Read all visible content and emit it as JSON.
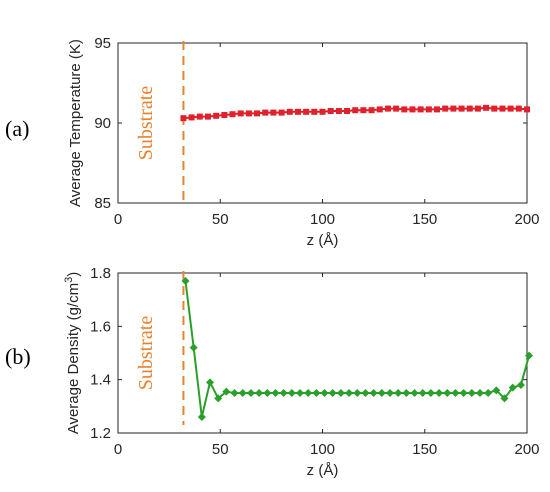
{
  "chart_data": [
    {
      "type": "line",
      "panel_label": "(a)",
      "xlabel": "z (Å)",
      "ylabel": "Average Temperature (K)",
      "xlim": [
        0,
        200
      ],
      "ylim": [
        85,
        95
      ],
      "xticks": [
        0,
        50,
        100,
        150,
        200
      ],
      "yticks": [
        85,
        90,
        95
      ],
      "annotation": "Substrate",
      "substrate_z": 32,
      "marker": "square",
      "color": "#e0202a",
      "annotation_color": "#e8822e",
      "x": [
        32,
        36,
        40,
        44,
        48,
        52,
        56,
        60,
        64,
        68,
        72,
        76,
        80,
        84,
        88,
        92,
        96,
        100,
        104,
        108,
        112,
        116,
        120,
        124,
        128,
        132,
        136,
        140,
        144,
        148,
        152,
        156,
        160,
        164,
        168,
        172,
        176,
        180,
        184,
        188,
        192,
        196,
        200
      ],
      "values": [
        90.3,
        90.35,
        90.4,
        90.4,
        90.45,
        90.5,
        90.55,
        90.6,
        90.6,
        90.6,
        90.65,
        90.65,
        90.65,
        90.7,
        90.7,
        90.7,
        90.7,
        90.7,
        90.75,
        90.75,
        90.75,
        90.8,
        90.8,
        90.8,
        90.85,
        90.9,
        90.9,
        90.85,
        90.85,
        90.85,
        90.85,
        90.85,
        90.9,
        90.9,
        90.9,
        90.9,
        90.9,
        90.95,
        90.9,
        90.9,
        90.9,
        90.9,
        90.85
      ]
    },
    {
      "type": "line",
      "panel_label": "(b)",
      "xlabel": "z (Å)",
      "ylabel_main": "Average Density (g/cm",
      "ylabel_sup": "3",
      "ylabel_end": ")",
      "xlim": [
        0,
        200
      ],
      "ylim": [
        1.2,
        1.8
      ],
      "xticks": [
        0,
        50,
        100,
        150,
        200
      ],
      "yticks": [
        "1.2",
        "1.4",
        "1.6",
        "1.8"
      ],
      "annotation": "Substrate",
      "substrate_z": 32,
      "marker": "diamond",
      "color": "#2aa02a",
      "annotation_color": "#e8822e",
      "x": [
        33,
        37,
        41,
        45,
        49,
        53,
        57,
        61,
        65,
        69,
        73,
        77,
        81,
        85,
        89,
        93,
        97,
        101,
        105,
        109,
        113,
        117,
        121,
        125,
        129,
        133,
        137,
        141,
        145,
        149,
        153,
        157,
        161,
        165,
        169,
        173,
        177,
        181,
        185,
        189,
        193,
        197,
        201
      ],
      "values": [
        1.77,
        1.52,
        1.26,
        1.39,
        1.33,
        1.355,
        1.35,
        1.35,
        1.35,
        1.35,
        1.35,
        1.35,
        1.35,
        1.35,
        1.35,
        1.35,
        1.35,
        1.35,
        1.35,
        1.35,
        1.35,
        1.35,
        1.35,
        1.35,
        1.35,
        1.35,
        1.35,
        1.35,
        1.35,
        1.35,
        1.35,
        1.35,
        1.35,
        1.35,
        1.35,
        1.35,
        1.35,
        1.35,
        1.36,
        1.33,
        1.37,
        1.38,
        1.49
      ]
    }
  ]
}
